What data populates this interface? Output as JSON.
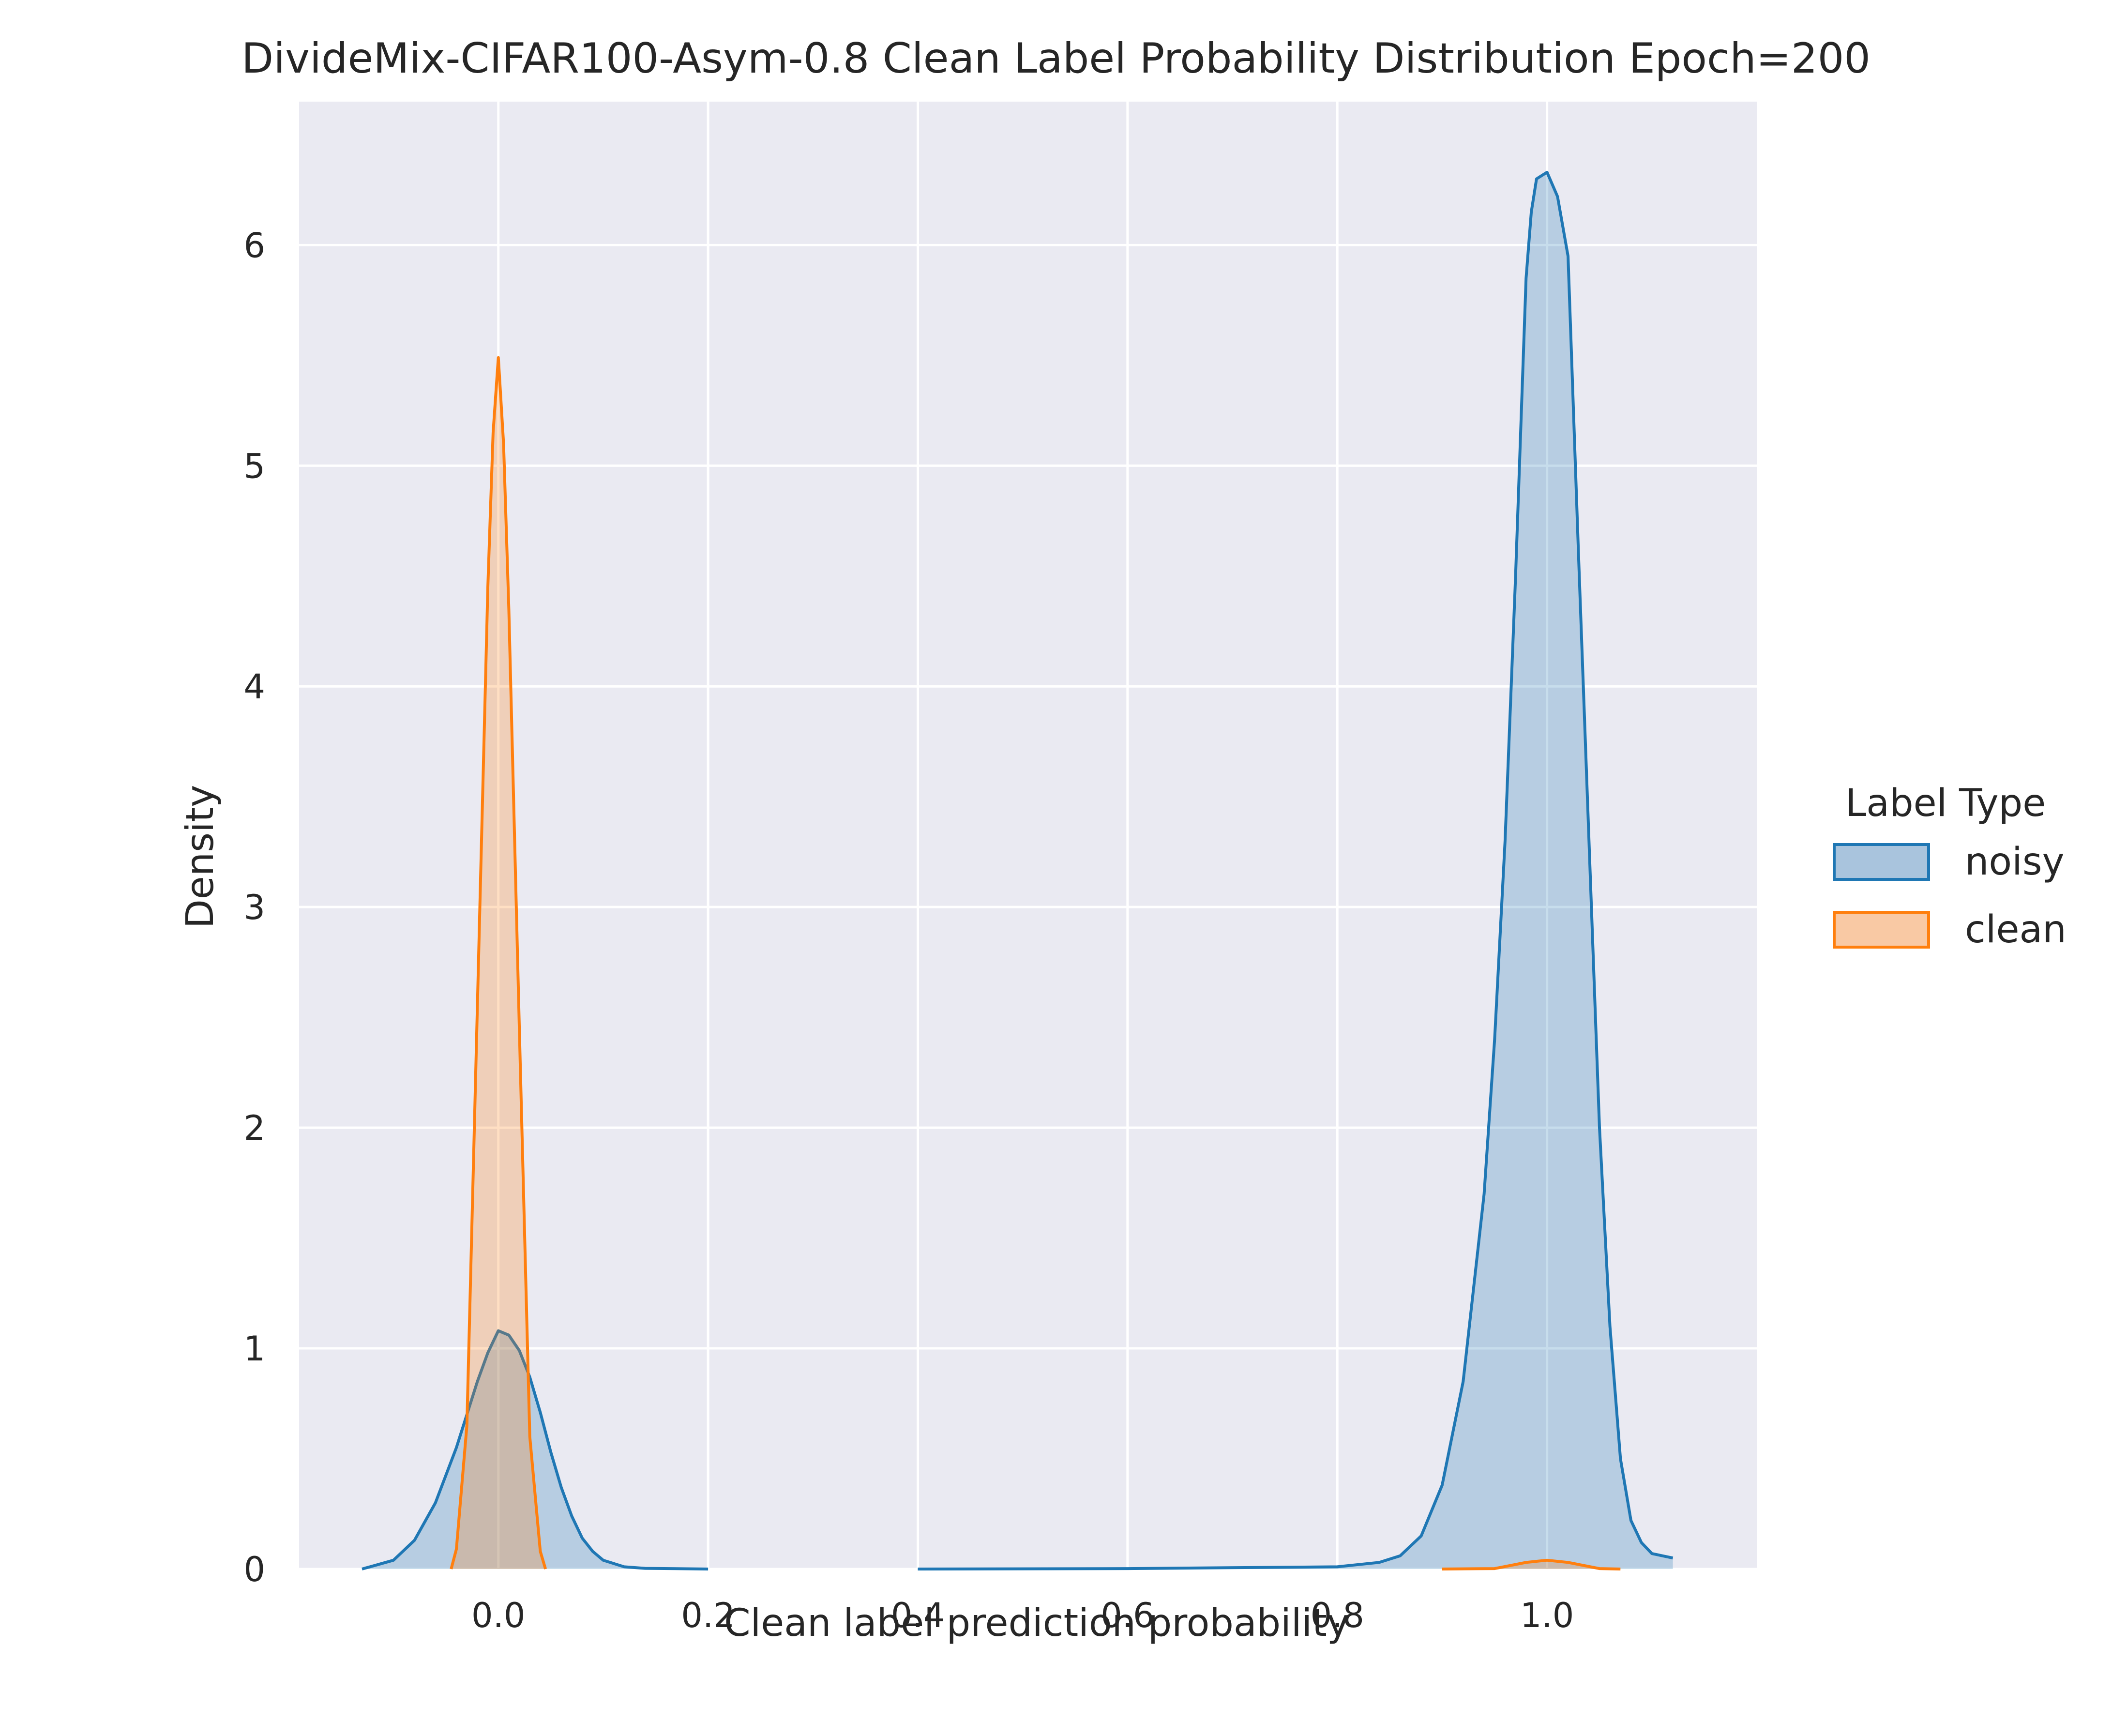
{
  "chart_data": {
    "type": "area",
    "title": "DivideMix-CIFAR100-Asym-0.8 Clean Label Probability Distribution Epoch=200",
    "xlabel": "Clean label prediction probability",
    "ylabel": "Density",
    "xlim": [
      -0.19,
      1.2
    ],
    "ylim": [
      0,
      6.65
    ],
    "xticks": [
      0.0,
      0.2,
      0.4,
      0.6,
      0.8,
      1.0
    ],
    "xtick_labels": [
      "0.0",
      "0.2",
      "0.4",
      "0.6",
      "0.8",
      "1.0"
    ],
    "yticks": [
      0,
      1,
      2,
      3,
      4,
      5,
      6
    ],
    "ytick_labels": [
      "0",
      "1",
      "2",
      "3",
      "4",
      "5",
      "6"
    ],
    "grid": true,
    "background": "#eaeaf2",
    "legend": {
      "title": "Label Type",
      "placement": "right"
    },
    "series": [
      {
        "name": "noisy",
        "color": "#1f77b4",
        "fill": "#a9c4dd",
        "points": [
          [
            -0.13,
            0.0
          ],
          [
            -0.1,
            0.04
          ],
          [
            -0.08,
            0.13
          ],
          [
            -0.06,
            0.3
          ],
          [
            -0.04,
            0.55
          ],
          [
            -0.02,
            0.85
          ],
          [
            -0.01,
            0.98
          ],
          [
            0.0,
            1.08
          ],
          [
            0.01,
            1.06
          ],
          [
            0.02,
            0.99
          ],
          [
            0.03,
            0.87
          ],
          [
            0.04,
            0.71
          ],
          [
            0.05,
            0.53
          ],
          [
            0.06,
            0.37
          ],
          [
            0.07,
            0.24
          ],
          [
            0.08,
            0.14
          ],
          [
            0.09,
            0.08
          ],
          [
            0.1,
            0.04
          ],
          [
            0.12,
            0.01
          ],
          [
            0.14,
            0.003
          ],
          [
            0.2,
            0.0
          ],
          [
            0.4,
            0.0
          ],
          [
            0.6,
            0.002
          ],
          [
            0.8,
            0.01
          ],
          [
            0.84,
            0.03
          ],
          [
            0.86,
            0.06
          ],
          [
            0.88,
            0.15
          ],
          [
            0.9,
            0.38
          ],
          [
            0.92,
            0.85
          ],
          [
            0.94,
            1.7
          ],
          [
            0.95,
            2.4
          ],
          [
            0.96,
            3.3
          ],
          [
            0.97,
            4.5
          ],
          [
            0.98,
            5.85
          ],
          [
            0.985,
            6.15
          ],
          [
            0.99,
            6.3
          ],
          [
            1.0,
            6.33
          ],
          [
            1.01,
            6.22
          ],
          [
            1.02,
            5.95
          ],
          [
            1.03,
            4.6
          ],
          [
            1.04,
            3.3
          ],
          [
            1.05,
            2.0
          ],
          [
            1.06,
            1.1
          ],
          [
            1.07,
            0.5
          ],
          [
            1.08,
            0.22
          ],
          [
            1.09,
            0.12
          ],
          [
            1.1,
            0.07
          ],
          [
            1.12,
            0.05
          ]
        ]
      },
      {
        "name": "clean",
        "color": "#ff7f0e",
        "fill": "#f9c9a4",
        "points": [
          [
            -0.045,
            0.0
          ],
          [
            -0.04,
            0.09
          ],
          [
            -0.03,
            0.65
          ],
          [
            -0.02,
            2.55
          ],
          [
            -0.01,
            4.45
          ],
          [
            -0.005,
            5.15
          ],
          [
            0.0,
            5.49
          ],
          [
            0.005,
            5.1
          ],
          [
            0.01,
            4.35
          ],
          [
            0.02,
            2.45
          ],
          [
            0.03,
            0.6
          ],
          [
            0.04,
            0.08
          ],
          [
            0.045,
            0.0
          ],
          [
            0.9,
            0.0
          ],
          [
            0.95,
            0.002
          ],
          [
            0.98,
            0.03
          ],
          [
            1.0,
            0.04
          ],
          [
            1.02,
            0.03
          ],
          [
            1.05,
            0.002
          ],
          [
            1.07,
            0.0
          ]
        ]
      }
    ]
  }
}
